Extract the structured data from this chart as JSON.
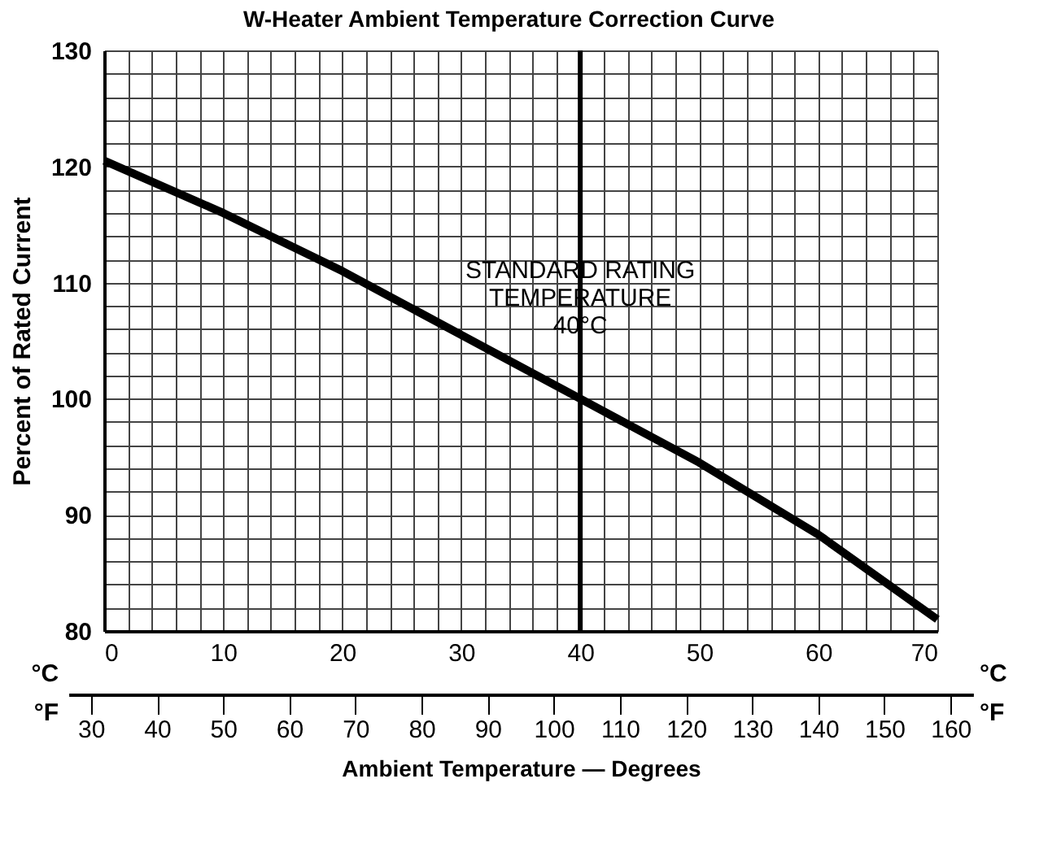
{
  "chart_data": {
    "type": "line",
    "title": "W-Heater Ambient Temperature Correction Curve",
    "xlabel": "Ambient Temperature — Degrees",
    "ylabel": "Percent of Rated Current",
    "x": [
      0,
      10,
      20,
      30,
      40,
      50,
      60,
      70
    ],
    "series": [
      {
        "color": "#000000",
        "values": [
          120.5,
          116,
          111,
          105.5,
          100,
          94.5,
          88.3,
          81
        ]
      }
    ],
    "xlim": [
      0,
      70
    ],
    "xticks": [
      0,
      {
        "value": 2,
        "label": null
      },
      {
        "value": 4,
        "label": null
      },
      {
        "value": 6,
        "label": null
      },
      {
        "value": 8,
        "label": null
      },
      10,
      {
        "value": 12,
        "label": null
      },
      {
        "value": 14,
        "label": null
      },
      {
        "value": 16,
        "label": null
      },
      {
        "value": 18,
        "label": null
      },
      20,
      {
        "value": 22,
        "label": null
      },
      {
        "value": 24,
        "label": null
      },
      {
        "value": 26,
        "label": null
      },
      {
        "value": 28,
        "label": null
      },
      30,
      {
        "value": 32,
        "label": null
      },
      {
        "value": 34,
        "label": null
      },
      {
        "value": 36,
        "label": null
      },
      {
        "value": 38,
        "label": null
      },
      40,
      {
        "value": 42,
        "label": null
      },
      {
        "value": 44,
        "label": null
      },
      {
        "value": 46,
        "label": null
      },
      {
        "value": 48,
        "label": null
      },
      50,
      {
        "value": 52,
        "label": null
      },
      {
        "value": 54,
        "label": null
      },
      {
        "value": 56,
        "label": null
      },
      {
        "value": 58,
        "label": null
      },
      60,
      {
        "value": 62,
        "label": null
      },
      {
        "value": 64,
        "label": null
      },
      {
        "value": 66,
        "label": null
      },
      {
        "value": 68,
        "label": null
      },
      70
    ],
    "ylim": [
      80,
      130
    ],
    "yticks": [
      80,
      {
        "value": 82,
        "label": null
      },
      {
        "value": 84,
        "label": null
      },
      {
        "value": 86,
        "label": null
      },
      {
        "value": 88,
        "label": null
      },
      90,
      {
        "value": 92,
        "label": null
      },
      {
        "value": 94,
        "label": null
      },
      {
        "value": 96,
        "label": null
      },
      {
        "value": 98,
        "label": null
      },
      100,
      {
        "value": 102,
        "label": null
      },
      {
        "value": 104,
        "label": null
      },
      {
        "value": 106,
        "label": null
      },
      {
        "value": 108,
        "label": null
      },
      110,
      {
        "value": 112,
        "label": null
      },
      {
        "value": 114,
        "label": null
      },
      {
        "value": 116,
        "label": null
      },
      {
        "value": 118,
        "label": null
      },
      120,
      {
        "value": 122,
        "label": null
      },
      {
        "value": 124,
        "label": null
      },
      {
        "value": 126,
        "label": null
      },
      {
        "value": 128,
        "label": null
      },
      130
    ],
    "x2lim": [
      26.6,
      163.4
    ],
    "x2ticks": [
      30,
      40,
      50,
      60,
      70,
      80,
      90,
      100,
      110,
      120,
      130,
      140,
      150,
      160
    ],
    "ref_lines": [
      {
        "axis": "x",
        "value": 40,
        "label": "STANDARD RATING\nTEMPERATURE\n40°C",
        "color": "#000000"
      }
    ],
    "annotations": [
      "°C",
      "°F"
    ],
    "grid": true,
    "marker": "none",
    "line_style": "solid"
  }
}
